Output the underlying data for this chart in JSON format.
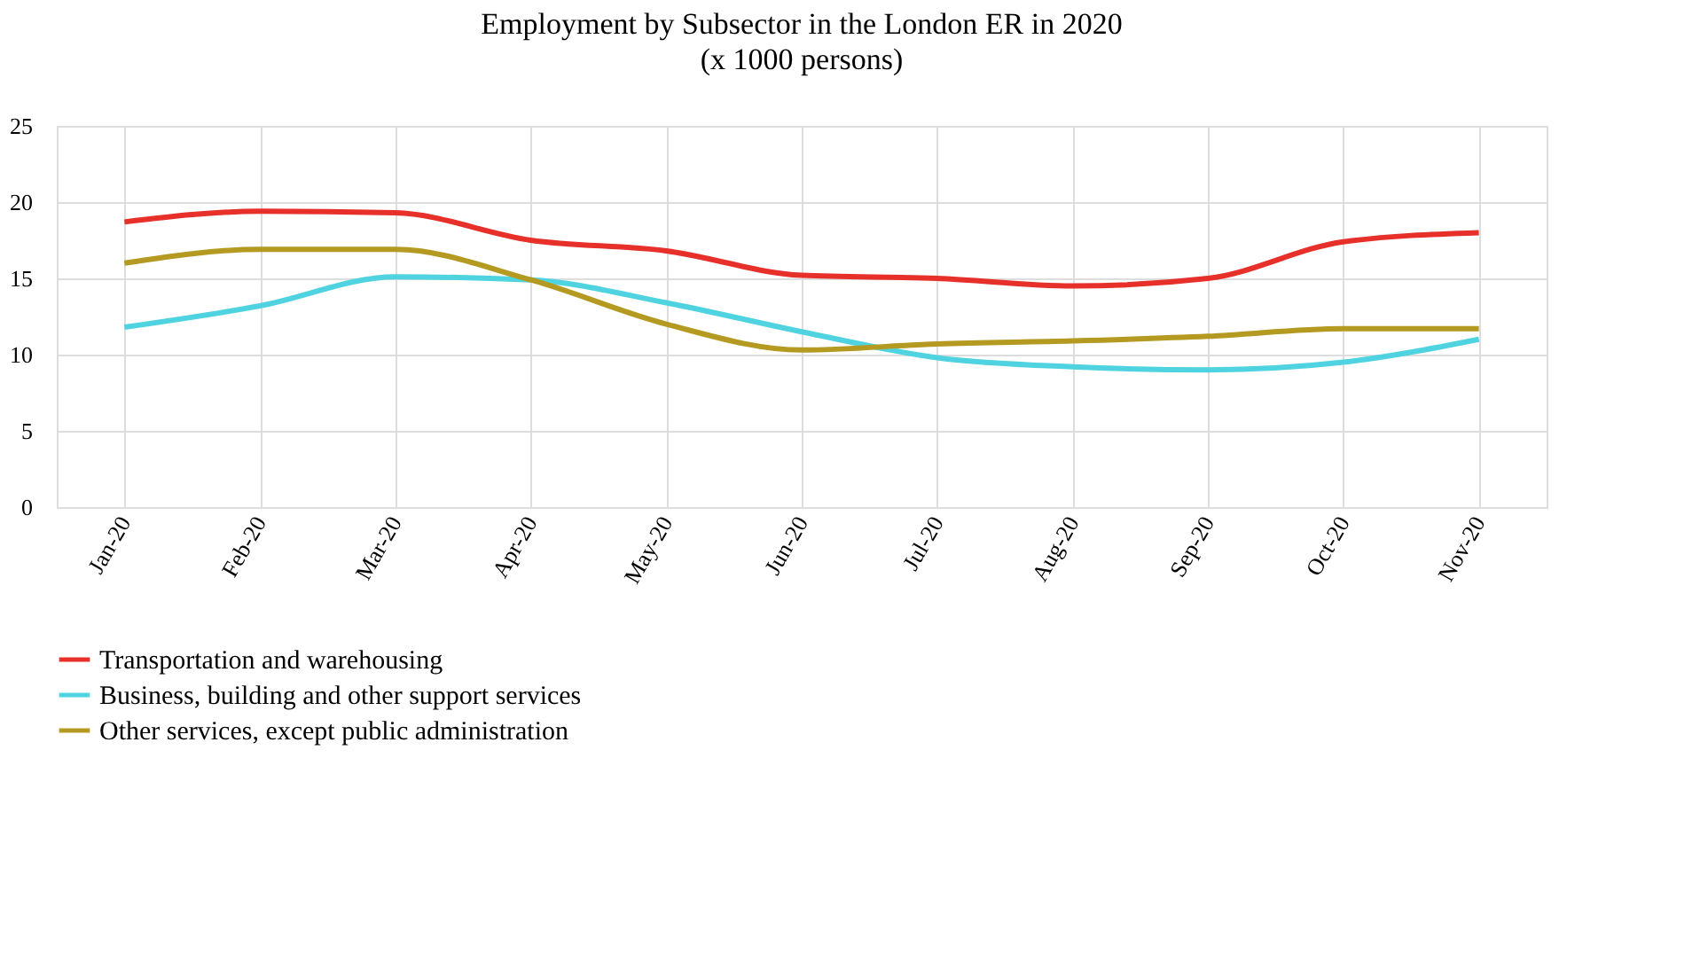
{
  "chart_data": {
    "type": "line",
    "title": "Employment by Subsector in the London ER in 2020",
    "subtitle": "(x 1000 persons)",
    "categories": [
      "Jan-20",
      "Feb-20",
      "Mar-20",
      "Apr-20",
      "May-20",
      "Jun-20",
      "Jul-20",
      "Aug-20",
      "Sep-20",
      "Oct-20",
      "Nov-20"
    ],
    "series": [
      {
        "name": "Transportation and warehousing",
        "color": "#e8302a",
        "values": [
          18.7,
          19.4,
          19.3,
          17.5,
          16.8,
          15.2,
          15.0,
          14.5,
          15.0,
          17.4,
          18.0
        ]
      },
      {
        "name": "Business, building and other support services",
        "color": "#4fd3e0",
        "values": [
          11.8,
          13.2,
          15.1,
          14.9,
          13.4,
          11.5,
          9.8,
          9.2,
          9.0,
          9.5,
          11.0
        ]
      },
      {
        "name": "Other services, except public administration",
        "color": "#b59a22",
        "values": [
          16.0,
          16.9,
          16.9,
          14.9,
          12.0,
          10.3,
          10.7,
          10.9,
          11.2,
          11.7,
          11.7
        ]
      }
    ],
    "ylim": [
      0,
      25
    ],
    "yticks": [
      0,
      5,
      10,
      15,
      20,
      25
    ],
    "grid": true,
    "legend": "bottom",
    "marker": "none",
    "line_style": "solid"
  }
}
